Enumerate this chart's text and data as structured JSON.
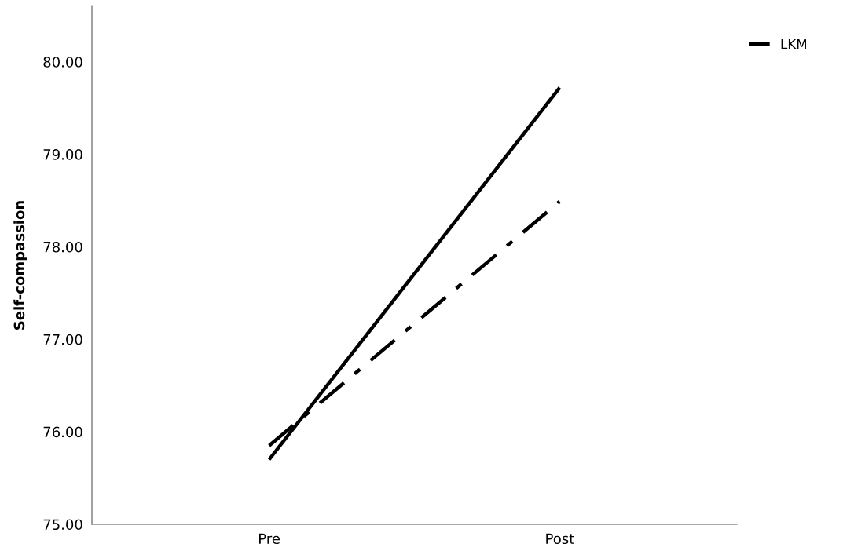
{
  "chart_data": {
    "type": "line",
    "ylabel": "Self-compassion",
    "categories": [
      "Pre",
      "Post"
    ],
    "series": [
      {
        "name": "LKM",
        "color": "#000000",
        "values": [
          75.7,
          79.72
        ],
        "line_style": "solid"
      },
      {
        "color": "#000000",
        "values": [
          75.85,
          78.49
        ],
        "line_style": "dashdot"
      }
    ],
    "ylim": [
      75,
      80.6
    ],
    "yticks": [
      {
        "value": 75,
        "label": "75.00"
      },
      {
        "value": 76,
        "label": "76.00"
      },
      {
        "value": 77,
        "label": "77.00"
      },
      {
        "value": 78,
        "label": "78.00"
      },
      {
        "value": 79,
        "label": "79.00"
      },
      {
        "value": 80,
        "label": "80.00"
      }
    ],
    "grid": false,
    "legend": "top right",
    "marker": "none"
  }
}
